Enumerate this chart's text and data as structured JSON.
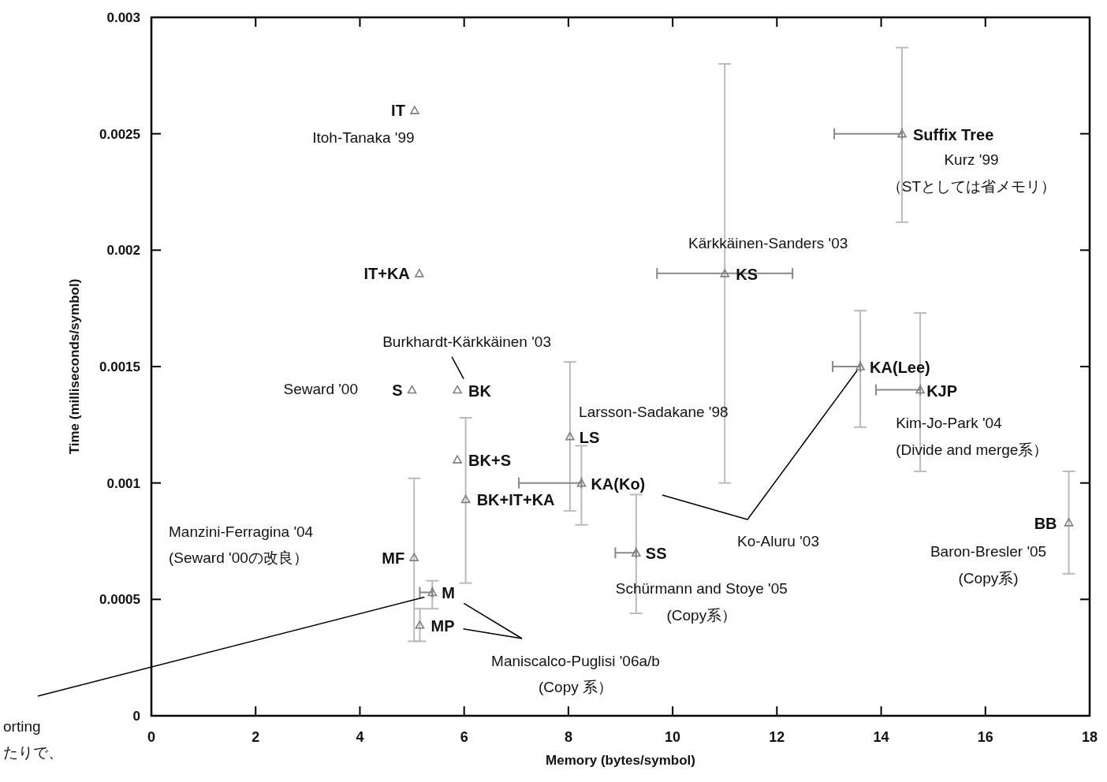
{
  "chart_data": {
    "type": "scatter",
    "xlabel": "Memory (bytes/symbol)",
    "ylabel": "Time (milliseconds/symbol)",
    "xlim": [
      0,
      18
    ],
    "xticks": [
      0,
      2,
      4,
      6,
      8,
      10,
      12,
      14,
      16,
      18
    ],
    "ylim": [
      0,
      0.003
    ],
    "yticks": [
      0,
      0.0005,
      0.001,
      0.0015,
      0.002,
      0.0025,
      0.003
    ],
    "marker": "triangle",
    "series": [
      {
        "color": "#808080",
        "x": [
          5.05,
          5.14,
          5.0,
          5.87,
          5.87,
          6.03,
          8.03,
          8.25,
          5.04,
          5.39,
          5.15,
          9.3,
          11.0,
          14.4,
          13.6,
          14.75,
          17.6
        ],
        "values": [
          0.0026,
          0.0019,
          0.0014,
          0.0014,
          0.0011,
          0.00093,
          0.0012,
          0.001,
          0.00068,
          0.00053,
          0.00039,
          0.0007,
          0.0019,
          0.0025,
          0.0015,
          0.0014,
          0.00083
        ],
        "errors": [
          null,
          null,
          null,
          null,
          null,
          [
            0.00057,
            0.00128
          ],
          [
            0.00088,
            0.00152
          ],
          [
            0.00082,
            0.00116
          ],
          [
            0.00032,
            0.00102
          ],
          [
            0.00046,
            0.00058
          ],
          [
            0.00032,
            0.00046
          ],
          [
            0.00044,
            0.00095
          ],
          [
            0.001,
            0.0028
          ],
          [
            0.00212,
            0.00287
          ],
          [
            0.00124,
            0.00174
          ],
          [
            0.00105,
            0.00173
          ],
          [
            0.00061,
            0.00105
          ]
        ],
        "xerrors": [
          null,
          null,
          null,
          null,
          null,
          null,
          null,
          [
            7.05,
            8.25
          ],
          null,
          [
            5.15,
            5.39
          ],
          null,
          [
            8.9,
            9.3
          ],
          [
            9.7,
            12.3
          ],
          [
            13.1,
            14.4
          ],
          [
            13.07,
            13.6
          ],
          [
            13.9,
            14.75
          ],
          null
        ]
      }
    ],
    "annotations": [
      {
        "text": "IT",
        "x": 5.05,
        "y": 0.0026
      },
      {
        "text": "Itoh-Tanaka '99",
        "x": 5.05,
        "y": 0.0026
      },
      {
        "text": "IT+KA",
        "x": 5.14,
        "y": 0.0019
      },
      {
        "text": "S",
        "x": 5.0,
        "y": 0.0014
      },
      "Seward '00",
      {
        "text": "BK",
        "x": 5.87,
        "y": 0.0014
      },
      {
        "text": "Burkhardt-Kärkkäinen '03",
        "x": 5.87,
        "y": 0.0014
      },
      {
        "text": "BK+S",
        "x": 5.87,
        "y": 0.0011
      },
      {
        "text": "BK+IT+KA",
        "x": 6.03,
        "y": 0.00093
      },
      {
        "text": "LS",
        "x": 8.03,
        "y": 0.0012
      },
      {
        "text": "Larsson-Sadakane '98",
        "x": 8.03,
        "y": 0.0012
      },
      {
        "text": "KA(Ko)",
        "x": 8.25,
        "y": 0.001
      },
      "Ko-Aluru '03",
      {
        "text": "MF",
        "x": 5.04,
        "y": 0.00068
      },
      "Manzini-Ferragina '04\n(Seward '00の改良）",
      {
        "text": "M",
        "x": 5.39,
        "y": 0.00053
      },
      {
        "text": "MP",
        "x": 5.15,
        "y": 0.00039
      },
      "Maniscalco-Puglisi '06a/b\n(Copy 系）",
      {
        "text": "SS",
        "x": 9.3,
        "y": 0.0007
      },
      {
        "text": "Schürmann and Stoye '05\n(Copy系）",
        "x": 9.3,
        "y": 0.0007
      },
      {
        "text": "KS",
        "x": 11.0,
        "y": 0.0019
      },
      {
        "text": "Kärkkäinen-Sanders '03",
        "x": 11.0,
        "y": 0.0019
      },
      {
        "text": "Suffix Tree",
        "x": 14.4,
        "y": 0.0025
      },
      {
        "text": "Kurz '99\n（STとしては省メモリ）",
        "x": 14.4,
        "y": 0.0025
      },
      {
        "text": "KA(Lee)",
        "x": 13.6,
        "y": 0.0015
      },
      {
        "text": "KJP",
        "x": 14.75,
        "y": 0.0014
      },
      {
        "text": "Kim-Jo-Park '04\n(Divide and merge系）",
        "x": 14.75,
        "y": 0.0014
      },
      {
        "text": "BB",
        "x": 17.6,
        "y": 0.00083
      },
      {
        "text": "Baron-Bresler '05\n(Copy系)",
        "x": 17.6,
        "y": 0.00083
      },
      "orting\nたりで、"
    ]
  }
}
